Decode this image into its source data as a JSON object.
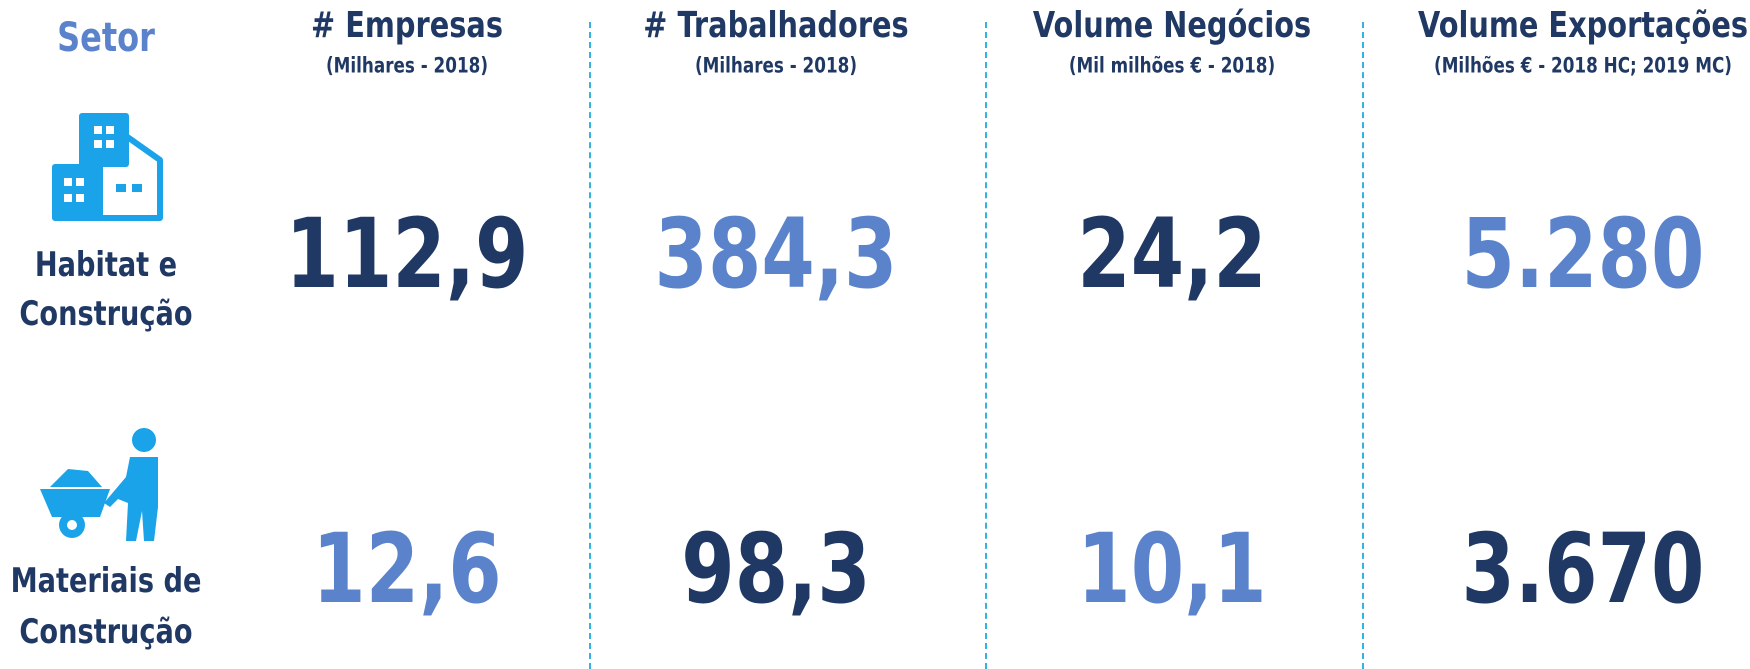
{
  "header": {
    "sector_label": "Setor",
    "columns": [
      {
        "title": "# Empresas",
        "subtitle": "(Milhares - 2018)"
      },
      {
        "title": "# Trabalhadores",
        "subtitle": "(Milhares - 2018)"
      },
      {
        "title": "Volume Negócios",
        "subtitle": "(Mil milhões € - 2018)"
      },
      {
        "title": "Volume Exportações",
        "subtitle": "(Milhões € - 2018 HC; 2019 MC)"
      }
    ]
  },
  "rows": [
    {
      "sector_lines": [
        "Habitat e",
        "Construção"
      ],
      "values": [
        "112,9",
        "384,3",
        "24,2",
        "5.280"
      ]
    },
    {
      "sector_lines": [
        "Materiais de",
        "Construção"
      ],
      "values": [
        "12,6",
        "98,3",
        "10,1",
        "3.670"
      ]
    }
  ]
}
